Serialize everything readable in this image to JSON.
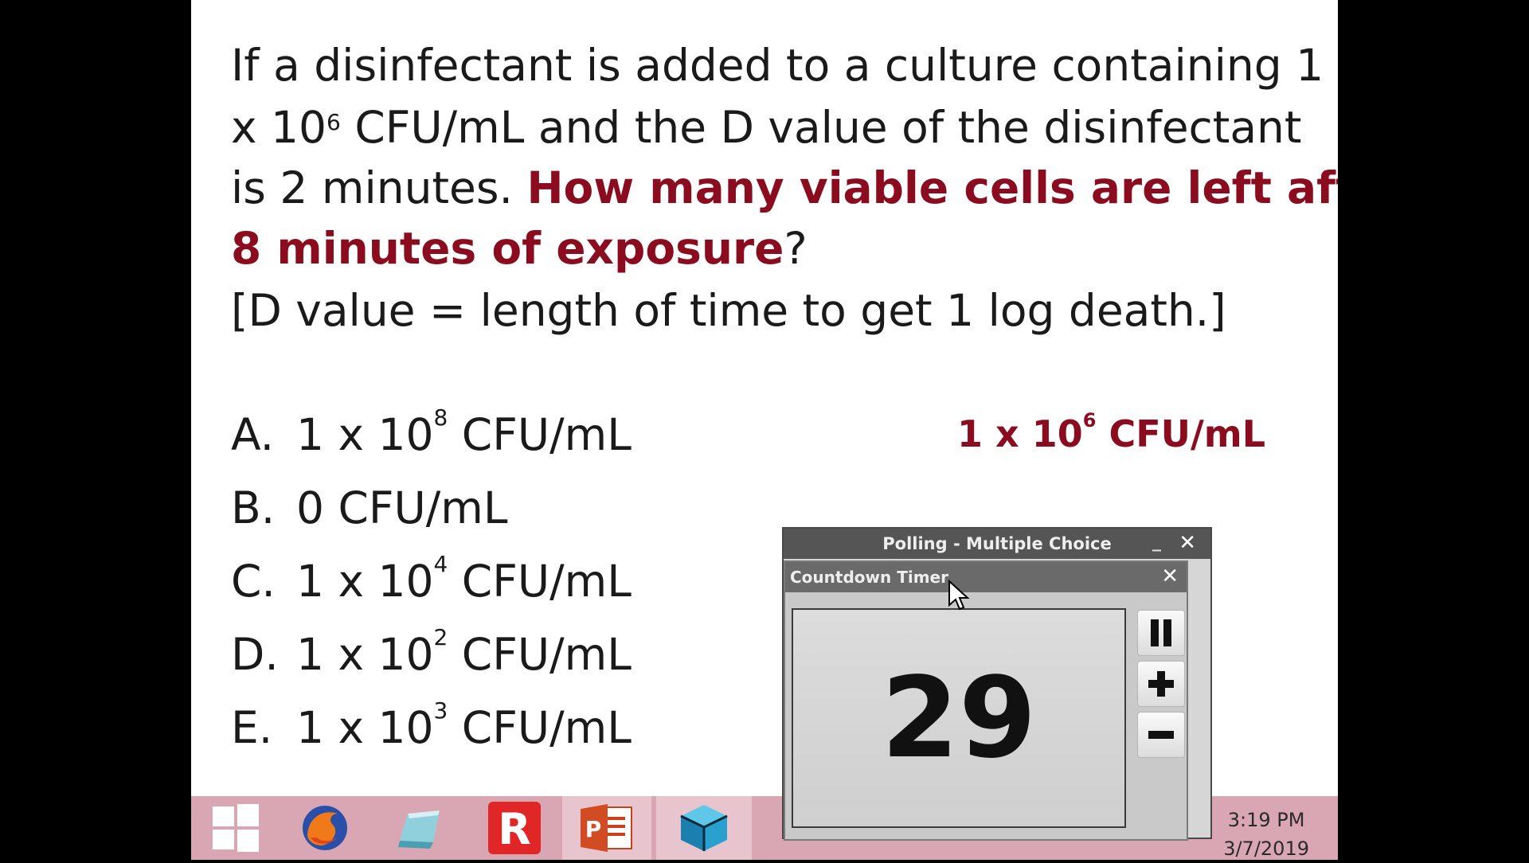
{
  "question": {
    "line1": "If a disinfectant is added to a culture containing 1",
    "line2_a": "x 10",
    "line2_sup": "6",
    "line2_b": " CFU/mL and the D value of the disinfectant",
    "line3_a": "is 2 minutes.  ",
    "line3_red": "How many viable cells are left after",
    "line4_red": "8 minutes of exposure",
    "line4_end": "?",
    "line5": "[D value = length of time to get 1 log death.]"
  },
  "options": [
    {
      "letter": "A.",
      "pre": "1 x 10",
      "exp": "8",
      "post": " CFU/mL"
    },
    {
      "letter": "B.",
      "pre": "0 CFU/mL",
      "exp": "",
      "post": ""
    },
    {
      "letter": "C.",
      "pre": "1 x 10",
      "exp": "4",
      "post": " CFU/mL"
    },
    {
      "letter": "D.",
      "pre": "1 x 10",
      "exp": "2",
      "post": " CFU/mL"
    },
    {
      "letter": "E.",
      "pre": "1 x 10",
      "exp": "3",
      "post": " CFU/mL"
    }
  ],
  "answer": {
    "pre": "1 x 10",
    "exp": "6",
    "post": " CFU/mL"
  },
  "poll_window": {
    "title": "Polling - Multiple Choice",
    "minimize": "_",
    "close": "✕"
  },
  "timer_window": {
    "title": "Countdown Timer",
    "close": "✕",
    "value": "29"
  },
  "taskbar": {
    "apps": [
      "windows-start",
      "firefox",
      "file-explorer",
      "r-app",
      "powerpoint",
      "cube-app"
    ],
    "time": "3:19 PM",
    "date": "3/7/2019"
  },
  "colors": {
    "accent_red": "#8b0c1e",
    "taskbar": "#d9a7b4"
  }
}
